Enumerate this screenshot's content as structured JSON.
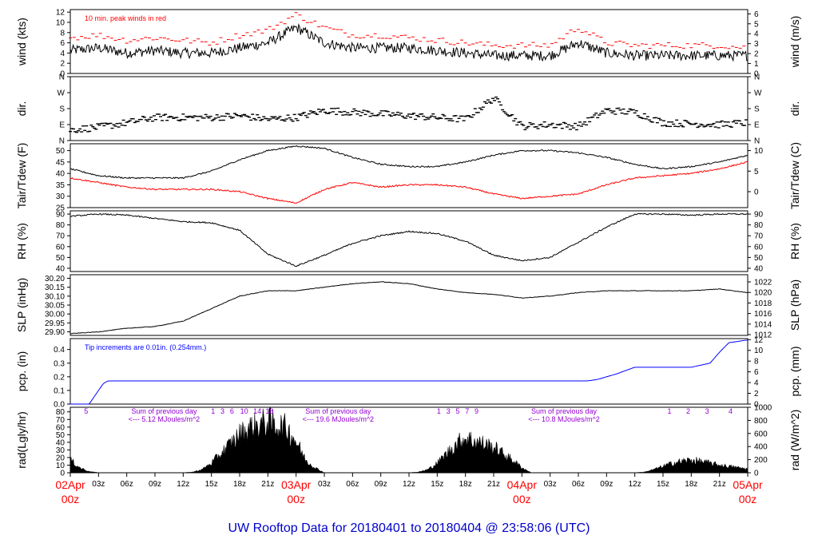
{
  "footer_title": "UW Rooftop Data for 20180401  to  20180404 @ 23:58:06  (UTC)",
  "colors": {
    "primary": "#000000",
    "peak": "#ff0000",
    "precip": "#0000ff",
    "note": "#0000ff",
    "date": "#ff0000",
    "rad_note": "#9400d3",
    "title": "#0000cc"
  },
  "time_axis": {
    "hour_ticks": [
      "03z",
      "06z",
      "09z",
      "12z",
      "15z",
      "18z",
      "21z",
      "03z",
      "06z",
      "09z",
      "12z",
      "15z",
      "18z",
      "21z",
      "03z",
      "06z",
      "09z",
      "12z",
      "15z",
      "18z",
      "21z"
    ],
    "dates": [
      {
        "day": "02Apr",
        "hour": "00z"
      },
      {
        "day": "03Apr",
        "hour": "00z"
      },
      {
        "day": "04Apr",
        "hour": "00z"
      },
      {
        "day": "05Apr",
        "hour": "00z"
      }
    ]
  },
  "chart_data": [
    {
      "type": "line",
      "panel": "wind",
      "ylabel_left": "wind (kts)",
      "ylabel_right": "wind (m/s)",
      "note": "10 min. peak winds in red",
      "yticks_left": [
        "0",
        "2",
        "4",
        "6",
        "8",
        "10",
        "12"
      ],
      "yticks_right": [
        "0",
        "1",
        "2",
        "3",
        "4",
        "5",
        "6"
      ],
      "ylim": [
        0,
        12.5
      ],
      "series": [
        {
          "role": "mean",
          "x_hours": [
            0,
            3,
            6,
            9,
            12,
            15,
            18,
            21,
            24,
            27,
            30,
            33,
            36,
            39,
            42,
            45,
            48,
            51,
            54,
            57,
            60,
            63,
            66,
            69,
            72
          ],
          "values": [
            4.5,
            5,
            4,
            4.5,
            4,
            4,
            5,
            6,
            9,
            6,
            5,
            5,
            5,
            4.5,
            4,
            3.5,
            3.5,
            3.5,
            6,
            4,
            3.5,
            3.5,
            3.5,
            3.5,
            3.5
          ]
        },
        {
          "role": "peak",
          "x_hours": [
            0,
            3,
            6,
            9,
            12,
            15,
            18,
            21,
            24,
            27,
            30,
            33,
            36,
            39,
            42,
            45,
            48,
            51,
            54,
            57,
            60,
            63,
            66,
            69,
            72
          ],
          "values": [
            7,
            7.5,
            6.5,
            7,
            6.5,
            6,
            7.5,
            8.5,
            11.5,
            9,
            7.5,
            7.5,
            7,
            6.5,
            6,
            5.5,
            5.5,
            5.5,
            9,
            6,
            5.5,
            5.5,
            5.5,
            5.5,
            5
          ]
        }
      ]
    },
    {
      "type": "scatter",
      "panel": "dir",
      "ylabel_left": "dir.",
      "ylabel_right": "dir.",
      "yticks_left": [
        "N",
        "E",
        "S",
        "W",
        "N"
      ],
      "yticks_right": [
        "N",
        "E",
        "S",
        "W",
        "N"
      ],
      "ylim": [
        0,
        360
      ],
      "x_hours": [
        0,
        3,
        6,
        9,
        12,
        15,
        18,
        21,
        24,
        27,
        30,
        33,
        36,
        39,
        42,
        45,
        48,
        51,
        54,
        57,
        60,
        63,
        66,
        69,
        72
      ],
      "values": [
        60,
        75,
        100,
        130,
        130,
        130,
        140,
        120,
        130,
        170,
        160,
        150,
        140,
        130,
        120,
        240,
        80,
        90,
        80,
        170,
        160,
        100,
        95,
        90,
        100
      ]
    },
    {
      "type": "line",
      "panel": "temp",
      "ylabel_left": "Tair/Tdew (F)",
      "ylabel_right": "Tair/Tdew (C)",
      "yticks_left": [
        "25",
        "30",
        "35",
        "40",
        "45",
        "50"
      ],
      "yticks_right": [
        "0",
        "5",
        "10"
      ],
      "ylim": [
        25,
        53
      ],
      "series": [
        {
          "role": "Tair",
          "x_hours": [
            0,
            3,
            6,
            9,
            12,
            15,
            18,
            21,
            24,
            27,
            30,
            33,
            36,
            39,
            42,
            45,
            48,
            51,
            54,
            57,
            60,
            63,
            66,
            69,
            72
          ],
          "values": [
            42,
            39,
            38,
            38,
            38,
            41,
            46,
            50,
            52,
            51,
            47,
            44,
            43,
            43,
            45,
            48,
            50,
            50,
            49,
            47,
            44,
            42,
            43,
            45,
            48
          ]
        },
        {
          "role": "Tdew",
          "x_hours": [
            0,
            3,
            6,
            9,
            12,
            15,
            18,
            21,
            24,
            27,
            30,
            33,
            36,
            39,
            42,
            45,
            48,
            51,
            54,
            57,
            60,
            63,
            66,
            69,
            72
          ],
          "values": [
            38,
            36,
            34,
            33,
            33,
            33,
            32,
            29,
            27,
            33,
            36,
            34,
            35,
            35,
            34,
            31,
            29,
            30,
            31,
            35,
            38,
            39,
            40,
            42,
            45
          ]
        }
      ]
    },
    {
      "type": "line",
      "panel": "rh",
      "ylabel_left": "RH (%)",
      "ylabel_right": "RH (%)",
      "yticks_left": [
        "40",
        "50",
        "60",
        "70",
        "80",
        "90"
      ],
      "yticks_right": [
        "40",
        "50",
        "60",
        "70",
        "80",
        "90"
      ],
      "ylim": [
        37,
        93
      ],
      "x_hours": [
        0,
        3,
        6,
        9,
        12,
        15,
        18,
        21,
        24,
        27,
        30,
        33,
        36,
        39,
        42,
        45,
        48,
        51,
        54,
        57,
        60,
        63,
        66,
        69,
        72
      ],
      "values": [
        88,
        90,
        89,
        86,
        83,
        82,
        75,
        53,
        42,
        52,
        63,
        70,
        74,
        72,
        65,
        52,
        47,
        50,
        64,
        78,
        90,
        90,
        89,
        90,
        90
      ]
    },
    {
      "type": "line",
      "panel": "slp",
      "ylabel_left": "SLP (inHg)",
      "ylabel_right": "SLP (hPa)",
      "yticks_left": [
        "29.90",
        "29.95",
        "30.00",
        "30.05",
        "30.10",
        "30.15",
        "30.20"
      ],
      "yticks_right": [
        "1012",
        "1014",
        "1016",
        "1018",
        "1020",
        "1022"
      ],
      "ylim": [
        29.88,
        30.22
      ],
      "x_hours": [
        0,
        3,
        6,
        9,
        12,
        15,
        18,
        21,
        24,
        27,
        30,
        33,
        36,
        39,
        42,
        45,
        48,
        51,
        54,
        57,
        60,
        63,
        66,
        69,
        72
      ],
      "values": [
        29.89,
        29.9,
        29.92,
        29.93,
        29.96,
        30.03,
        30.1,
        30.13,
        30.13,
        30.15,
        30.17,
        30.18,
        30.17,
        30.14,
        30.12,
        30.11,
        30.09,
        30.1,
        30.12,
        30.13,
        30.13,
        30.13,
        30.13,
        30.14,
        30.12
      ]
    },
    {
      "type": "line",
      "panel": "pcp",
      "ylabel_left": "pcp. (in)",
      "ylabel_right": "pcp. (mm)",
      "note": "Tip increments are 0.01in. (0.254mm.)",
      "yticks_left": [
        "0.0",
        "0.1",
        "0.2",
        "0.3",
        "0.4"
      ],
      "yticks_right": [
        "0",
        "2",
        "4",
        "6",
        "8",
        "10",
        "12"
      ],
      "ylim": [
        0,
        0.48
      ],
      "x_hours": [
        0,
        2,
        2.5,
        3,
        3.5,
        4,
        6,
        55,
        56,
        58,
        60,
        63,
        66,
        68,
        69,
        70,
        72
      ],
      "values": [
        0,
        0,
        0.05,
        0.1,
        0.15,
        0.17,
        0.17,
        0.17,
        0.18,
        0.22,
        0.27,
        0.27,
        0.27,
        0.3,
        0.38,
        0.45,
        0.47
      ]
    },
    {
      "type": "area",
      "panel": "rad",
      "ylabel_left": "rad(Lgly/hr)",
      "ylabel_right": "rad (W/m^2)",
      "yticks_left": [
        "0",
        "10",
        "20",
        "30",
        "40",
        "50",
        "60",
        "70",
        "80"
      ],
      "yticks_right": [
        "0",
        "200",
        "400",
        "600",
        "800",
        "1000"
      ],
      "ylim": [
        0,
        86
      ],
      "x_hours": [
        0,
        1,
        2,
        3,
        12,
        13,
        14,
        15,
        16,
        17,
        18,
        19,
        20,
        21,
        22,
        23,
        24,
        25,
        26,
        27,
        36,
        37,
        38,
        39,
        40,
        41,
        42,
        43,
        44,
        45,
        46,
        47,
        48,
        49,
        50,
        51,
        60,
        61,
        62,
        63,
        64,
        65,
        66,
        67,
        68,
        69,
        70,
        71,
        72
      ],
      "values": [
        20,
        8,
        2,
        0,
        0,
        1,
        5,
        15,
        30,
        45,
        60,
        70,
        75,
        80,
        75,
        70,
        50,
        20,
        8,
        0,
        0,
        1,
        5,
        15,
        30,
        45,
        55,
        50,
        45,
        40,
        30,
        20,
        8,
        0,
        0,
        0,
        0,
        1,
        5,
        10,
        15,
        18,
        20,
        18,
        15,
        12,
        10,
        8,
        6
      ],
      "hour_marks": [
        {
          "text": "5"
        },
        {
          "text": "1"
        },
        {
          "text": "3"
        },
        {
          "text": "6"
        },
        {
          "text": "10"
        },
        {
          "text": "14"
        },
        {
          "text": "18"
        },
        {
          "text": "1"
        },
        {
          "text": "3"
        },
        {
          "text": "5"
        },
        {
          "text": "7"
        },
        {
          "text": "9"
        },
        {
          "text": "1"
        },
        {
          "text": "2"
        },
        {
          "text": "3"
        },
        {
          "text": "4"
        }
      ],
      "daily_notes": [
        {
          "label": "Sum of previous day",
          "value": "<--- 5.12 MJoules/m^2"
        },
        {
          "label": "Sum of previous day",
          "value": "<--- 19.6 MJoules/m^2"
        },
        {
          "label": "Sum of previous day",
          "value": "<--- 10.8 MJoules/m^2"
        }
      ]
    }
  ]
}
